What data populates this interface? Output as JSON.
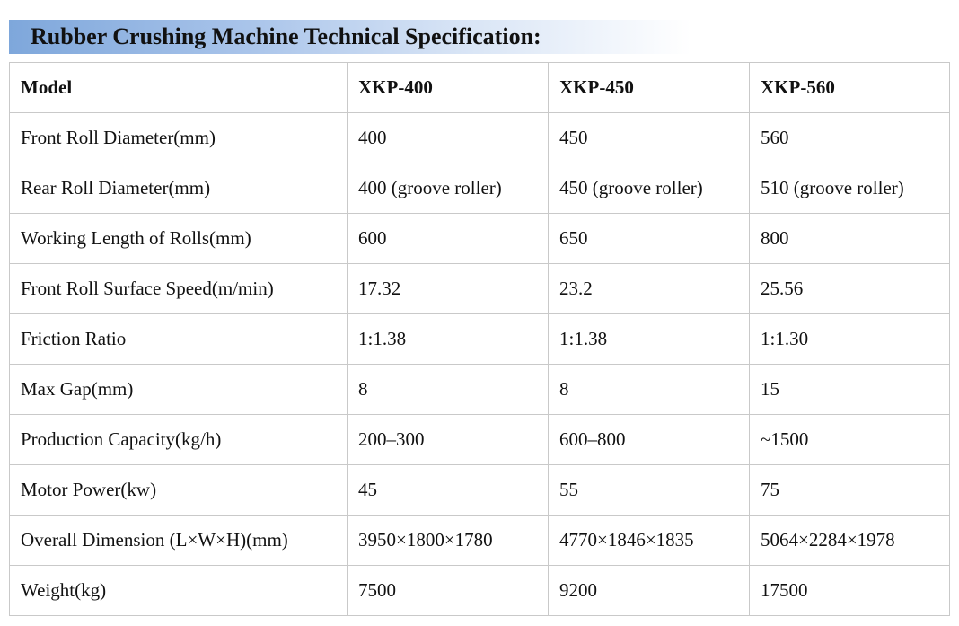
{
  "title": "Rubber Crushing Machine Technical Specification:",
  "table": {
    "header": [
      "Model",
      "XKP-400",
      "XKP-450",
      "XKP-560"
    ],
    "rows": [
      [
        "Front Roll Diameter(mm)",
        "400",
        "450",
        "560"
      ],
      [
        "Rear Roll Diameter(mm)",
        "400 (groove roller)",
        "450 (groove roller)",
        "510 (groove roller)"
      ],
      [
        "Working Length of Rolls(mm)",
        "600",
        "650",
        "800"
      ],
      [
        "Front Roll Surface Speed(m/min)",
        "17.32",
        "23.2",
        "25.56"
      ],
      [
        "Friction Ratio",
        "1:1.38",
        "1:1.38",
        "1:1.30"
      ],
      [
        "Max Gap(mm)",
        "8",
        "8",
        "15"
      ],
      [
        "Production Capacity(kg/h)",
        "200–300",
        "600–800",
        "~1500"
      ],
      [
        "Motor Power(kw)",
        "45",
        "55",
        "75"
      ],
      [
        "Overall Dimension (L×W×H)(mm)",
        "3950×1800×1780",
        "4770×1846×1835",
        "5064×2284×1978"
      ],
      [
        "Weight(kg)",
        "7500",
        "9200",
        "17500"
      ]
    ]
  }
}
